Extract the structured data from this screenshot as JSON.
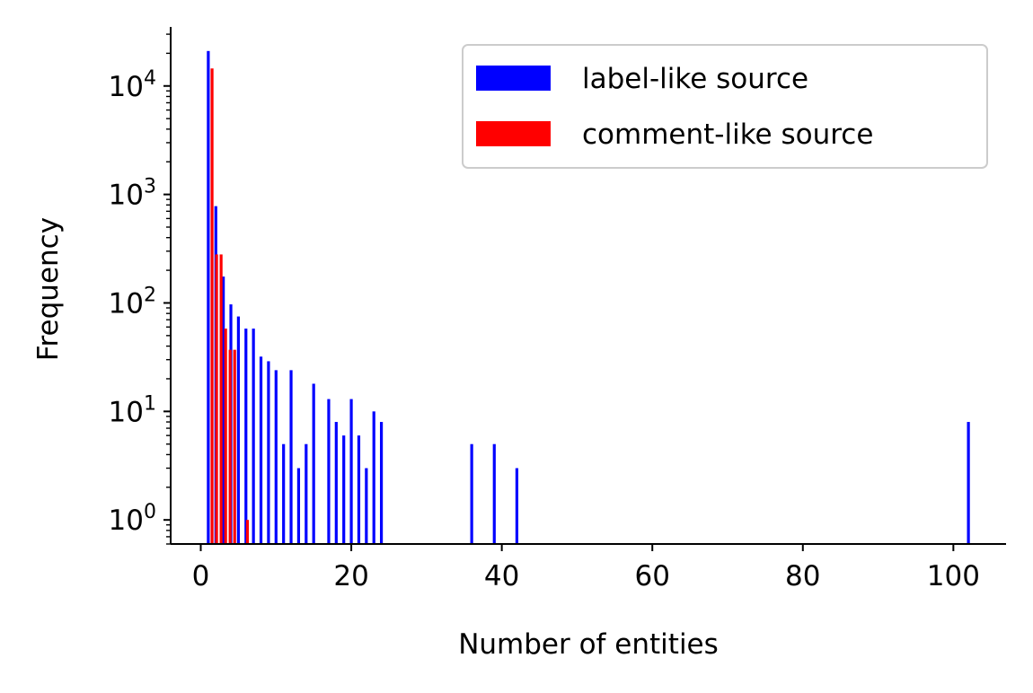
{
  "chart_data": {
    "type": "bar",
    "xlabel": "Number of entities",
    "ylabel": "Frequency",
    "xlim": [
      -4,
      107
    ],
    "ylim": [
      0.6,
      35000
    ],
    "yscale": "log",
    "grid": false,
    "legend_position": "top-right",
    "x_ticks": [
      {
        "value": 0,
        "label": "0"
      },
      {
        "value": 20,
        "label": "20"
      },
      {
        "value": 40,
        "label": "40"
      },
      {
        "value": 60,
        "label": "60"
      },
      {
        "value": 80,
        "label": "80"
      },
      {
        "value": 100,
        "label": "100"
      }
    ],
    "y_ticks": [
      {
        "value": 1,
        "base": "10",
        "exp": "0"
      },
      {
        "value": 10,
        "base": "10",
        "exp": "1"
      },
      {
        "value": 100,
        "base": "10",
        "exp": "2"
      },
      {
        "value": 1000,
        "base": "10",
        "exp": "3"
      },
      {
        "value": 10000,
        "base": "10",
        "exp": "4"
      }
    ],
    "series": [
      {
        "name": "label-like source",
        "color": "#0000ff",
        "points": [
          {
            "x": 1,
            "y": 21000
          },
          {
            "x": 2,
            "y": 780
          },
          {
            "x": 3,
            "y": 175
          },
          {
            "x": 4,
            "y": 97
          },
          {
            "x": 5,
            "y": 75
          },
          {
            "x": 6,
            "y": 58
          },
          {
            "x": 7,
            "y": 58
          },
          {
            "x": 8,
            "y": 32
          },
          {
            "x": 9,
            "y": 29
          },
          {
            "x": 10,
            "y": 24
          },
          {
            "x": 11,
            "y": 5
          },
          {
            "x": 12,
            "y": 24
          },
          {
            "x": 13,
            "y": 3
          },
          {
            "x": 14,
            "y": 5
          },
          {
            "x": 15,
            "y": 18
          },
          {
            "x": 17,
            "y": 13
          },
          {
            "x": 18,
            "y": 8
          },
          {
            "x": 19,
            "y": 6
          },
          {
            "x": 20,
            "y": 13
          },
          {
            "x": 21,
            "y": 6
          },
          {
            "x": 22,
            "y": 3
          },
          {
            "x": 23,
            "y": 10
          },
          {
            "x": 24,
            "y": 8
          },
          {
            "x": 36,
            "y": 5
          },
          {
            "x": 39,
            "y": 5
          },
          {
            "x": 42,
            "y": 3
          },
          {
            "x": 102,
            "y": 8
          }
        ]
      },
      {
        "name": "comment-like source",
        "color": "#ff0000",
        "points": [
          {
            "x": 1.5,
            "y": 14500
          },
          {
            "x": 2.1,
            "y": 280
          },
          {
            "x": 2.7,
            "y": 280
          },
          {
            "x": 3.3,
            "y": 58
          },
          {
            "x": 3.9,
            "y": 37
          },
          {
            "x": 4.5,
            "y": 37
          },
          {
            "x": 6.2,
            "y": 1
          }
        ]
      }
    ]
  }
}
